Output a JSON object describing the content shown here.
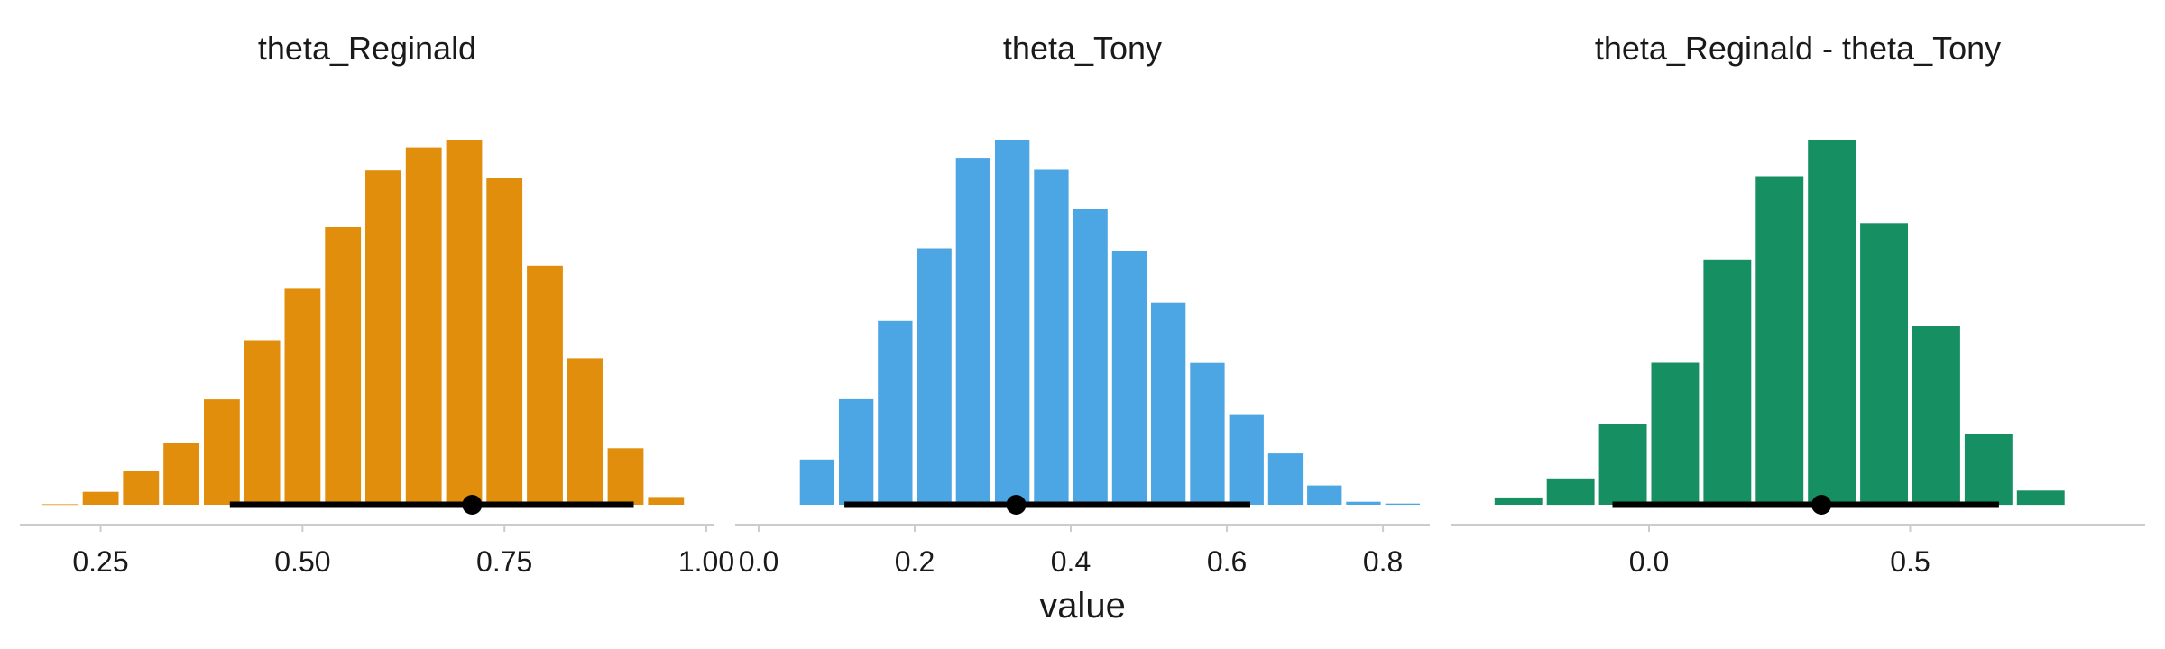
{
  "figure": {
    "xlabel": "value"
  },
  "chart_data": [
    {
      "type": "bar",
      "title": "theta_Reginald",
      "color": "#E08E0B",
      "xlim": [
        0.15,
        1.01
      ],
      "xticks": [
        0.25,
        0.5,
        0.75,
        1.0
      ],
      "xtick_labels": [
        "0.25",
        "0.50",
        "0.75",
        "1.00"
      ],
      "bin_width": 0.05,
      "bin_centers": [
        0.2,
        0.25,
        0.3,
        0.35,
        0.4,
        0.45,
        0.5,
        0.55,
        0.6,
        0.65,
        0.7,
        0.75,
        0.8,
        0.85,
        0.9,
        0.95
      ],
      "values": [
        1,
        25,
        65,
        120,
        205,
        320,
        420,
        540,
        650,
        695,
        710,
        635,
        465,
        285,
        110,
        15
      ],
      "interval": {
        "low": 0.41,
        "high": 0.91,
        "point": 0.71
      },
      "grid": false
    },
    {
      "type": "bar",
      "title": "theta_Tony",
      "color": "#4BA6E3",
      "xlim": [
        -0.03,
        0.86
      ],
      "xticks": [
        0.0,
        0.2,
        0.4,
        0.6,
        0.8
      ],
      "xtick_labels": [
        "0.0",
        "0.2",
        "0.4",
        "0.6",
        "0.8"
      ],
      "bin_width": 0.05,
      "bin_centers": [
        0.075,
        0.125,
        0.175,
        0.225,
        0.275,
        0.325,
        0.375,
        0.425,
        0.475,
        0.525,
        0.575,
        0.625,
        0.675,
        0.725,
        0.775,
        0.825
      ],
      "values": [
        75,
        175,
        305,
        425,
        575,
        605,
        555,
        490,
        420,
        335,
        235,
        150,
        85,
        32,
        5,
        2
      ],
      "interval": {
        "low": 0.11,
        "high": 0.63,
        "point": 0.33
      },
      "grid": false
    },
    {
      "type": "bar",
      "title": "theta_Reginald - theta_Tony",
      "color": "#168F62",
      "xlim": [
        -0.38,
        0.95
      ],
      "xticks": [
        0.0,
        0.5
      ],
      "xtick_labels": [
        "0.0",
        "0.5"
      ],
      "bin_width": 0.1,
      "bin_centers": [
        -0.25,
        -0.15,
        -0.05,
        0.05,
        0.15,
        0.25,
        0.35,
        0.45,
        0.55,
        0.65,
        0.75
      ],
      "values": [
        18,
        65,
        200,
        350,
        605,
        810,
        900,
        695,
        440,
        175,
        35
      ],
      "interval": {
        "low": -0.07,
        "high": 0.67,
        "point": 0.33
      },
      "grid": false
    }
  ]
}
